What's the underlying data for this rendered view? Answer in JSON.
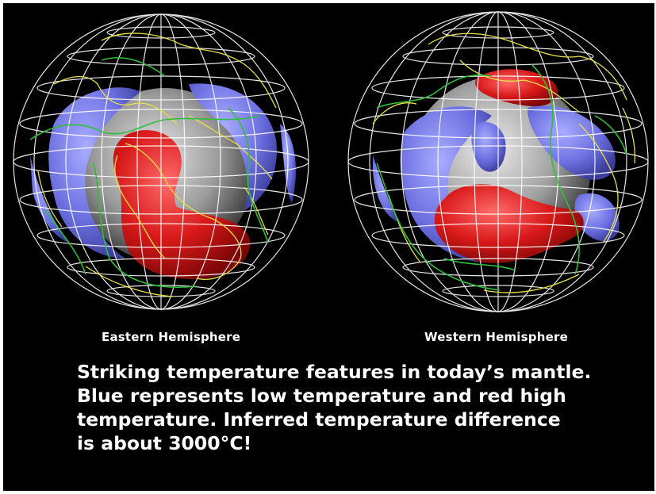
{
  "figures": [
    {
      "id": "east",
      "caption": "Eastern Hemisphere"
    },
    {
      "id": "west",
      "caption": "Western Hemisphere"
    }
  ],
  "description_lines": [
    "Striking temperature features in today’s mantle.",
    "Blue represents low temperature and red high",
    "temperature.  Inferred temperature difference",
    "is about 3000°C!"
  ],
  "colors": {
    "background": "#000000",
    "text": "#ffffff",
    "low_temperature": "#6f73e6",
    "high_temperature": "#e01e1e",
    "core": "#b5b5b5",
    "grid": "#ffffff",
    "coastlines": "#e8e045",
    "plate_boundaries": "#2fbf3a"
  }
}
